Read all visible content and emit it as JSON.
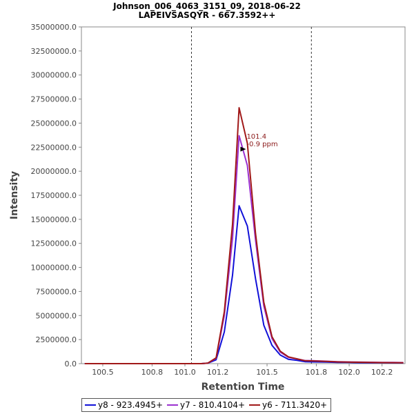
{
  "chart_data": {
    "type": "line",
    "title": "Johnson_006_4063_3151_09, 2018-06-22",
    "subtitle": "LAPEIVSASQYR - 667.3592++",
    "xlabel": "Retention Time",
    "ylabel": "Intensity",
    "xlim": [
      100.37,
      102.34
    ],
    "ylim": [
      0,
      35000000
    ],
    "x_ticks": [
      100.5,
      100.8,
      101.0,
      101.2,
      101.5,
      101.8,
      102.0,
      102.2
    ],
    "x_tick_labels": [
      "100.5",
      "100.8",
      "101.0",
      "101.2",
      "101.5",
      "101.8",
      "102.0",
      "102.2"
    ],
    "y_ticks": [
      0,
      2500000,
      5000000,
      7500000,
      10000000,
      12500000,
      15000000,
      17500000,
      20000000,
      22500000,
      25000000,
      27500000,
      30000000,
      32500000,
      35000000
    ],
    "y_tick_labels": [
      "0.0",
      "2500000.0",
      "5000000.0",
      "7500000.0",
      "10000000.0",
      "12500000.0",
      "15000000.0",
      "17500000.0",
      "20000000.0",
      "22500000.0",
      "25000000.0",
      "27500000.0",
      "30000000.0",
      "32500000.0",
      "35000000.0"
    ],
    "vlines": [
      101.04,
      101.77
    ],
    "annotation": {
      "x": 101.38,
      "y": 22300000,
      "line1": "101.4",
      "line2": "-0.9 ppm",
      "color": "#8b1a1a"
    },
    "x": [
      100.39,
      100.47,
      100.55,
      100.63,
      100.71,
      100.79,
      100.87,
      100.95,
      101.03,
      101.1,
      101.14,
      101.19,
      101.24,
      101.29,
      101.33,
      101.38,
      101.43,
      101.48,
      101.53,
      101.58,
      101.63,
      101.68,
      101.73,
      101.78,
      101.86,
      101.93,
      101.99,
      102.06,
      102.13,
      102.2,
      102.27,
      102.33
    ],
    "series": [
      {
        "name": "y8 - 923.4945+",
        "color": "#1010d8",
        "values": [
          0,
          0,
          0,
          0,
          0,
          0,
          0,
          0,
          0,
          0,
          50000,
          400000,
          3300000,
          9200000,
          16400000,
          14300000,
          8800000,
          4000000,
          1900000,
          900000,
          450000,
          350000,
          200000,
          180000,
          160000,
          130000,
          120000,
          100000,
          90000,
          90000,
          80000,
          70000
        ]
      },
      {
        "name": "y7 - 810.4104+",
        "color": "#9b30d0",
        "values": [
          0,
          0,
          0,
          0,
          0,
          0,
          0,
          0,
          0,
          0,
          60000,
          550000,
          5000000,
          13000000,
          23700000,
          20600000,
          12800000,
          6000000,
          2600000,
          1200000,
          650000,
          500000,
          320000,
          300000,
          250000,
          200000,
          180000,
          160000,
          140000,
          130000,
          120000,
          110000
        ]
      },
      {
        "name": "y6 - 711.3420+",
        "color": "#a01818",
        "values": [
          0,
          0,
          0,
          0,
          0,
          0,
          0,
          0,
          0,
          0,
          60000,
          600000,
          5400000,
          14500000,
          26600000,
          22900000,
          13500000,
          6400000,
          2800000,
          1300000,
          700000,
          500000,
          300000,
          280000,
          230000,
          180000,
          160000,
          140000,
          120000,
          110000,
          100000,
          90000
        ]
      }
    ]
  }
}
